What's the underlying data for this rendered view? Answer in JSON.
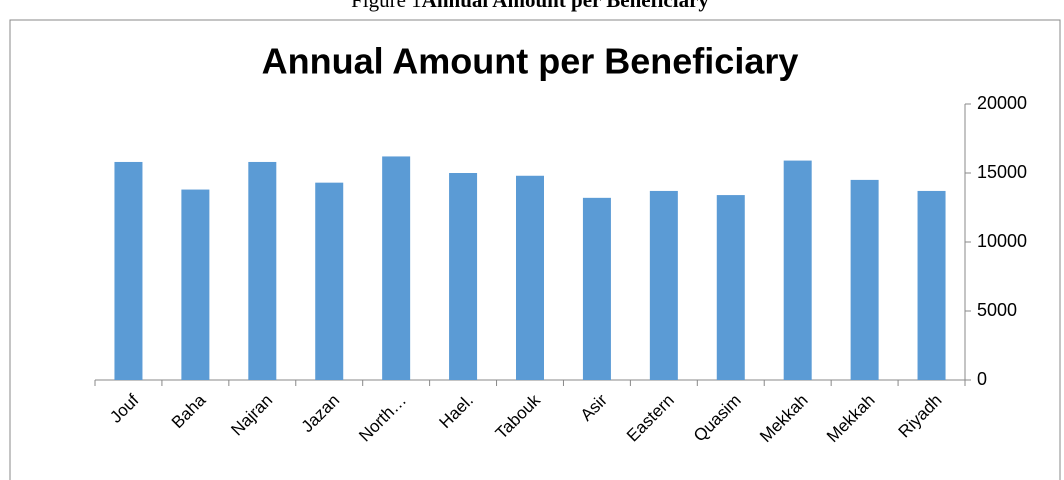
{
  "caption": {
    "label": "Figure 1",
    "title": "Annual Amount per Beneficiary"
  },
  "chart_data": {
    "type": "bar",
    "title": "Annual Amount per Beneficiary",
    "categories": [
      "Jouf",
      "Baha",
      "Najran",
      "Jazan",
      "North…",
      "Hael.",
      "Tabouk",
      "Asir",
      "Eastern",
      "Quasim",
      "Mekkah",
      "Mekkah",
      "Riyadh"
    ],
    "values": [
      15800,
      13800,
      15800,
      14300,
      16200,
      15000,
      14800,
      13200,
      13700,
      13400,
      15900,
      14500,
      13700
    ],
    "color": "#5b9bd5",
    "ylim": [
      0,
      20000
    ],
    "yticks": [
      0,
      5000,
      10000,
      15000,
      20000
    ],
    "grid": false,
    "y_axis_side": "right"
  }
}
